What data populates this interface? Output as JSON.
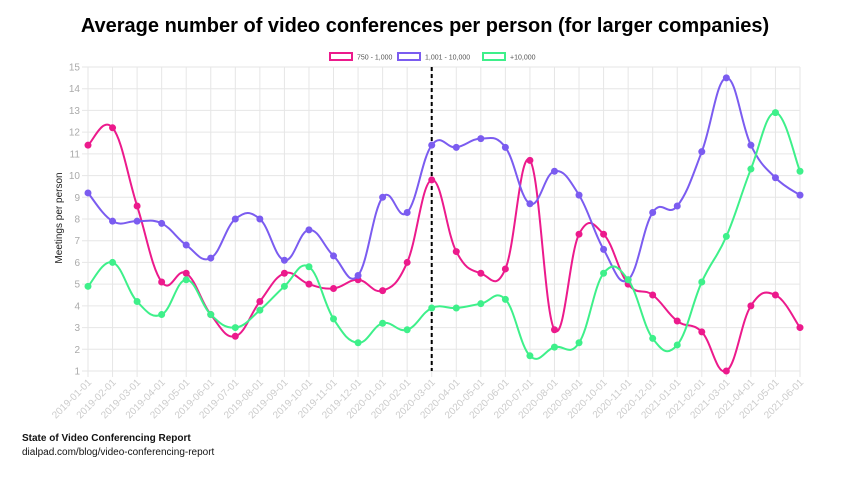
{
  "chart_data": {
    "type": "line",
    "title": "Average number of video conferences per person (for larger companies)",
    "y_label": "Meetings per person",
    "x": [
      "2019-01-01",
      "2019-02-01",
      "2019-03-01",
      "2019-04-01",
      "2019-05-01",
      "2019-06-01",
      "2019-07-01",
      "2019-08-01",
      "2019-09-01",
      "2019-10-01",
      "2019-11-01",
      "2019-12-01",
      "2020-01-01",
      "2020-02-01",
      "2020-03-01",
      "2020-04-01",
      "2020-05-01",
      "2020-06-01",
      "2020-07-01",
      "2020-08-01",
      "2020-09-01",
      "2020-10-01",
      "2020-11-01",
      "2020-12-01",
      "2021-01-01",
      "2021-02-01",
      "2021-03-01",
      "2021-04-01",
      "2021-05-01",
      "2021-06-01"
    ],
    "series": [
      {
        "name": "750 - 1,000",
        "color": "#ec1a8c",
        "values": [
          11.4,
          12.2,
          8.6,
          5.1,
          5.5,
          3.6,
          2.6,
          4.2,
          5.5,
          5.0,
          4.8,
          5.2,
          4.7,
          6.0,
          9.8,
          6.5,
          5.5,
          5.7,
          10.7,
          2.9,
          7.3,
          7.3,
          5.0,
          4.5,
          3.3,
          2.8,
          1.0,
          4.0,
          4.5,
          3.0
        ]
      },
      {
        "name": "1,001 - 10,000",
        "color": "#7b5cf0",
        "values": [
          9.2,
          7.9,
          7.9,
          7.8,
          6.8,
          6.2,
          8.0,
          8.0,
          6.1,
          7.5,
          6.3,
          5.4,
          9.0,
          8.3,
          11.4,
          11.3,
          11.7,
          11.3,
          8.7,
          10.2,
          9.1,
          6.6,
          5.2,
          8.3,
          8.6,
          11.1,
          14.5,
          11.4,
          9.9,
          9.1
        ]
      },
      {
        "name": "+10,000",
        "color": "#3ef08a",
        "values": [
          4.9,
          6.0,
          4.2,
          3.6,
          5.2,
          3.6,
          3.0,
          3.8,
          4.9,
          5.8,
          3.4,
          2.3,
          3.2,
          2.9,
          3.9,
          3.9,
          4.1,
          4.3,
          1.7,
          2.1,
          2.3,
          5.5,
          5.2,
          2.5,
          2.2,
          5.1,
          7.2,
          10.3,
          12.9,
          10.2
        ]
      }
    ],
    "ylim": [
      1,
      15
    ],
    "yticks": [
      1,
      2,
      3,
      4,
      5,
      6,
      7,
      8,
      9,
      10,
      11,
      12,
      13,
      14,
      15
    ],
    "grid": true,
    "vline": "2020-03-01",
    "legend": "top"
  },
  "footer": {
    "title": "State of Video Conferencing Report",
    "url": "dialpad.com/blog/video-conferencing-report"
  }
}
